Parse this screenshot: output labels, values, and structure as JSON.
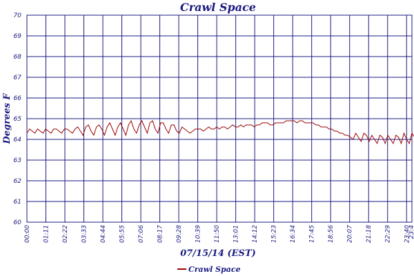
{
  "chart_data": {
    "type": "line",
    "title": "Crawl Space",
    "xlabel": "07/15/14 (EST)",
    "ylabel": "Degrees F",
    "ylim": [
      60,
      70
    ],
    "yticks": [
      "60",
      "61",
      "62",
      "63",
      "64",
      "65",
      "66",
      "67",
      "68",
      "69",
      "70"
    ],
    "xtick_labels": [
      "00:00",
      "01:11",
      "02:22",
      "03:33",
      "04:44",
      "05:55",
      "07:06",
      "08:17",
      "09:28",
      "10:39",
      "11:50",
      "13:01",
      "14:12",
      "15:23",
      "16:34",
      "17:45",
      "18:56",
      "20:07",
      "21:18",
      "22:29",
      "23:40",
      "23:4"
    ],
    "grid": true,
    "legend_position": "bottom-center",
    "colors": {
      "series": "#990000",
      "axes": "#1a1a80",
      "grid": "#1a1a80"
    },
    "series": [
      {
        "name": "Crawl Space",
        "sample_interval_minutes": 10,
        "values": [
          64.3,
          64.5,
          64.4,
          64.3,
          64.5,
          64.4,
          64.3,
          64.5,
          64.4,
          64.3,
          64.5,
          64.5,
          64.4,
          64.3,
          64.5,
          64.5,
          64.4,
          64.3,
          64.5,
          64.6,
          64.4,
          64.2,
          64.6,
          64.7,
          64.4,
          64.2,
          64.6,
          64.7,
          64.5,
          64.2,
          64.6,
          64.8,
          64.5,
          64.2,
          64.6,
          64.8,
          64.5,
          64.2,
          64.7,
          64.9,
          64.5,
          64.3,
          64.7,
          64.9,
          64.6,
          64.3,
          64.8,
          64.9,
          64.5,
          64.3,
          64.8,
          64.8,
          64.5,
          64.3,
          64.7,
          64.7,
          64.4,
          64.3,
          64.6,
          64.5,
          64.4,
          64.3,
          64.4,
          64.5,
          64.5,
          64.5,
          64.4,
          64.5,
          64.6,
          64.5,
          64.5,
          64.6,
          64.5,
          64.6,
          64.6,
          64.5,
          64.6,
          64.7,
          64.6,
          64.6,
          64.7,
          64.6,
          64.7,
          64.7,
          64.7,
          64.6,
          64.7,
          64.7,
          64.8,
          64.8,
          64.8,
          64.7,
          64.7,
          64.8,
          64.8,
          64.8,
          64.8,
          64.9,
          64.9,
          64.9,
          64.9,
          64.8,
          64.9,
          64.9,
          64.8,
          64.8,
          64.8,
          64.8,
          64.7,
          64.7,
          64.6,
          64.6,
          64.6,
          64.5,
          64.5,
          64.4,
          64.4,
          64.3,
          64.3,
          64.2,
          64.2,
          64.1,
          64.0,
          64.3,
          64.1,
          63.9,
          64.3,
          64.2,
          63.9,
          64.2,
          64.0,
          63.8,
          64.2,
          64.1,
          63.8,
          64.2,
          64.0,
          63.8,
          64.2,
          64.1,
          63.8,
          64.3,
          64.0,
          63.8,
          64.3,
          64.1,
          63.9,
          64.3,
          64.1,
          63.9,
          64.4
        ]
      }
    ]
  },
  "legend": {
    "label": "Crawl Space"
  }
}
